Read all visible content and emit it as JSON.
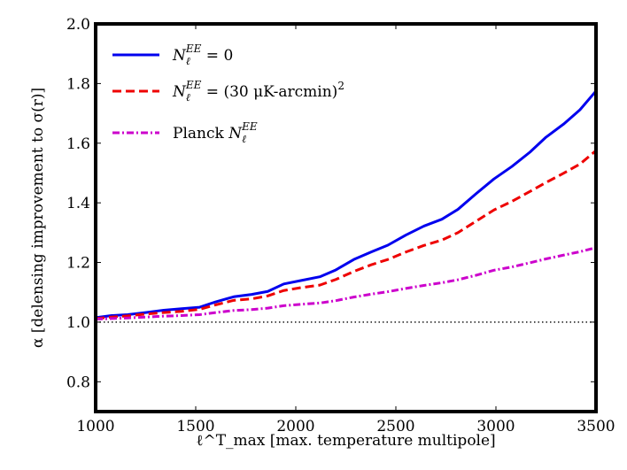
{
  "chart_data": {
    "type": "line",
    "title": "",
    "xlabel": "ℓ^T_max [max. temperature multipole]",
    "ylabel": "α [delensing improvement to σ(r)]",
    "xlim": [
      1000,
      3500
    ],
    "ylim": [
      0.7,
      2.0
    ],
    "xticks": [
      1000,
      1500,
      2000,
      2500,
      3000,
      3500
    ],
    "yticks": [
      0.8,
      1.0,
      1.2,
      1.4,
      1.6,
      1.8,
      2.0
    ],
    "xtick_labels": [
      "1000",
      "1500",
      "2000",
      "2500",
      "3000",
      "3500"
    ],
    "ytick_labels": [
      "0.8",
      "1.0",
      "1.2",
      "1.4",
      "1.6",
      "1.8",
      "2.0"
    ],
    "reference_line": {
      "y": 1.0,
      "style": "dotted",
      "color": "#000000"
    },
    "legend_position": "top-left",
    "series": [
      {
        "name": "N_ℓ^EE = 0",
        "legend": {
          "base": "N",
          "sub": "ℓ",
          "sup": "EE",
          "suffix": " = 0",
          "prefix": ""
        },
        "color": "#0000ee",
        "style": "solid",
        "x": [
          1000,
          1080,
          1160,
          1250,
          1340,
          1430,
          1520,
          1600,
          1690,
          1780,
          1860,
          1940,
          2030,
          2120,
          2200,
          2290,
          2380,
          2460,
          2550,
          2640,
          2730,
          2810,
          2900,
          2990,
          3080,
          3170,
          3250,
          3340,
          3420,
          3500
        ],
        "values": [
          1.015,
          1.022,
          1.025,
          1.032,
          1.04,
          1.045,
          1.05,
          1.068,
          1.085,
          1.093,
          1.103,
          1.128,
          1.14,
          1.152,
          1.175,
          1.21,
          1.236,
          1.258,
          1.292,
          1.322,
          1.345,
          1.378,
          1.43,
          1.48,
          1.522,
          1.57,
          1.62,
          1.665,
          1.712,
          1.775
        ]
      },
      {
        "name": "N_ℓ^EE = (30 μK-arcmin)^2",
        "legend": {
          "base": "N",
          "sub": "ℓ",
          "sup": "EE",
          "suffix": " = (30 μK-arcmin)",
          "suffix_sup": "2",
          "prefix": ""
        },
        "color": "#ee0000",
        "style": "dashed",
        "x": [
          1000,
          1080,
          1160,
          1250,
          1340,
          1430,
          1520,
          1600,
          1690,
          1780,
          1860,
          1940,
          2030,
          2120,
          2200,
          2290,
          2380,
          2460,
          2550,
          2640,
          2730,
          2810,
          2900,
          2990,
          3080,
          3170,
          3250,
          3340,
          3420,
          3500
        ],
        "values": [
          1.012,
          1.017,
          1.021,
          1.027,
          1.032,
          1.036,
          1.043,
          1.058,
          1.073,
          1.078,
          1.088,
          1.106,
          1.116,
          1.124,
          1.143,
          1.17,
          1.193,
          1.21,
          1.235,
          1.257,
          1.275,
          1.3,
          1.338,
          1.376,
          1.405,
          1.438,
          1.468,
          1.5,
          1.53,
          1.575
        ]
      },
      {
        "name": "Planck N_ℓ^EE",
        "legend": {
          "base": "N",
          "sub": "ℓ",
          "sup": "EE",
          "suffix": "",
          "prefix": "Planck "
        },
        "color": "#cc00cc",
        "style": "dashdot",
        "x": [
          1000,
          1080,
          1160,
          1250,
          1340,
          1430,
          1520,
          1600,
          1690,
          1780,
          1860,
          1940,
          2030,
          2120,
          2200,
          2290,
          2380,
          2460,
          2550,
          2640,
          2730,
          2810,
          2900,
          2990,
          3080,
          3170,
          3250,
          3340,
          3420,
          3500
        ],
        "values": [
          1.01,
          1.012,
          1.014,
          1.017,
          1.02,
          1.022,
          1.025,
          1.032,
          1.039,
          1.042,
          1.047,
          1.055,
          1.06,
          1.064,
          1.072,
          1.084,
          1.094,
          1.102,
          1.113,
          1.123,
          1.132,
          1.142,
          1.157,
          1.174,
          1.185,
          1.199,
          1.212,
          1.225,
          1.236,
          1.25
        ]
      }
    ]
  }
}
